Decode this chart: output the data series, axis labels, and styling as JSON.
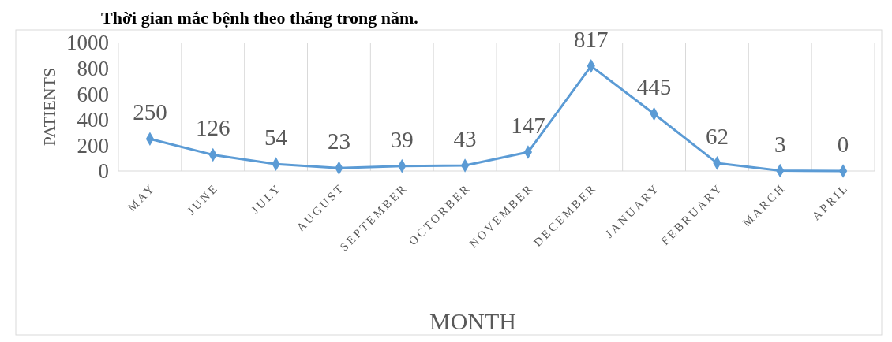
{
  "chart_data": {
    "type": "line",
    "title": "Thời gian mắc bệnh theo tháng trong năm.",
    "xlabel": "MONTH",
    "ylabel": "PATIENTS",
    "categories": [
      "MAY",
      "JUNE",
      "JULY",
      "AUGUST",
      "SEPTEMBER",
      "OCTORBER",
      "NOVEMBER",
      "DECEMBER",
      "JANUARY",
      "FEBRUARY",
      "MARCH",
      "APRIL"
    ],
    "series": [
      {
        "color": "#5b9bd5",
        "values": [
          250,
          126,
          54,
          23,
          39,
          43,
          147,
          817,
          445,
          62,
          3,
          0
        ]
      }
    ],
    "ylim": [
      0,
      1000
    ],
    "yticks": [
      0,
      200,
      400,
      600,
      800,
      1000
    ],
    "grid": "x",
    "marker": "diamond",
    "data_labels": true
  }
}
